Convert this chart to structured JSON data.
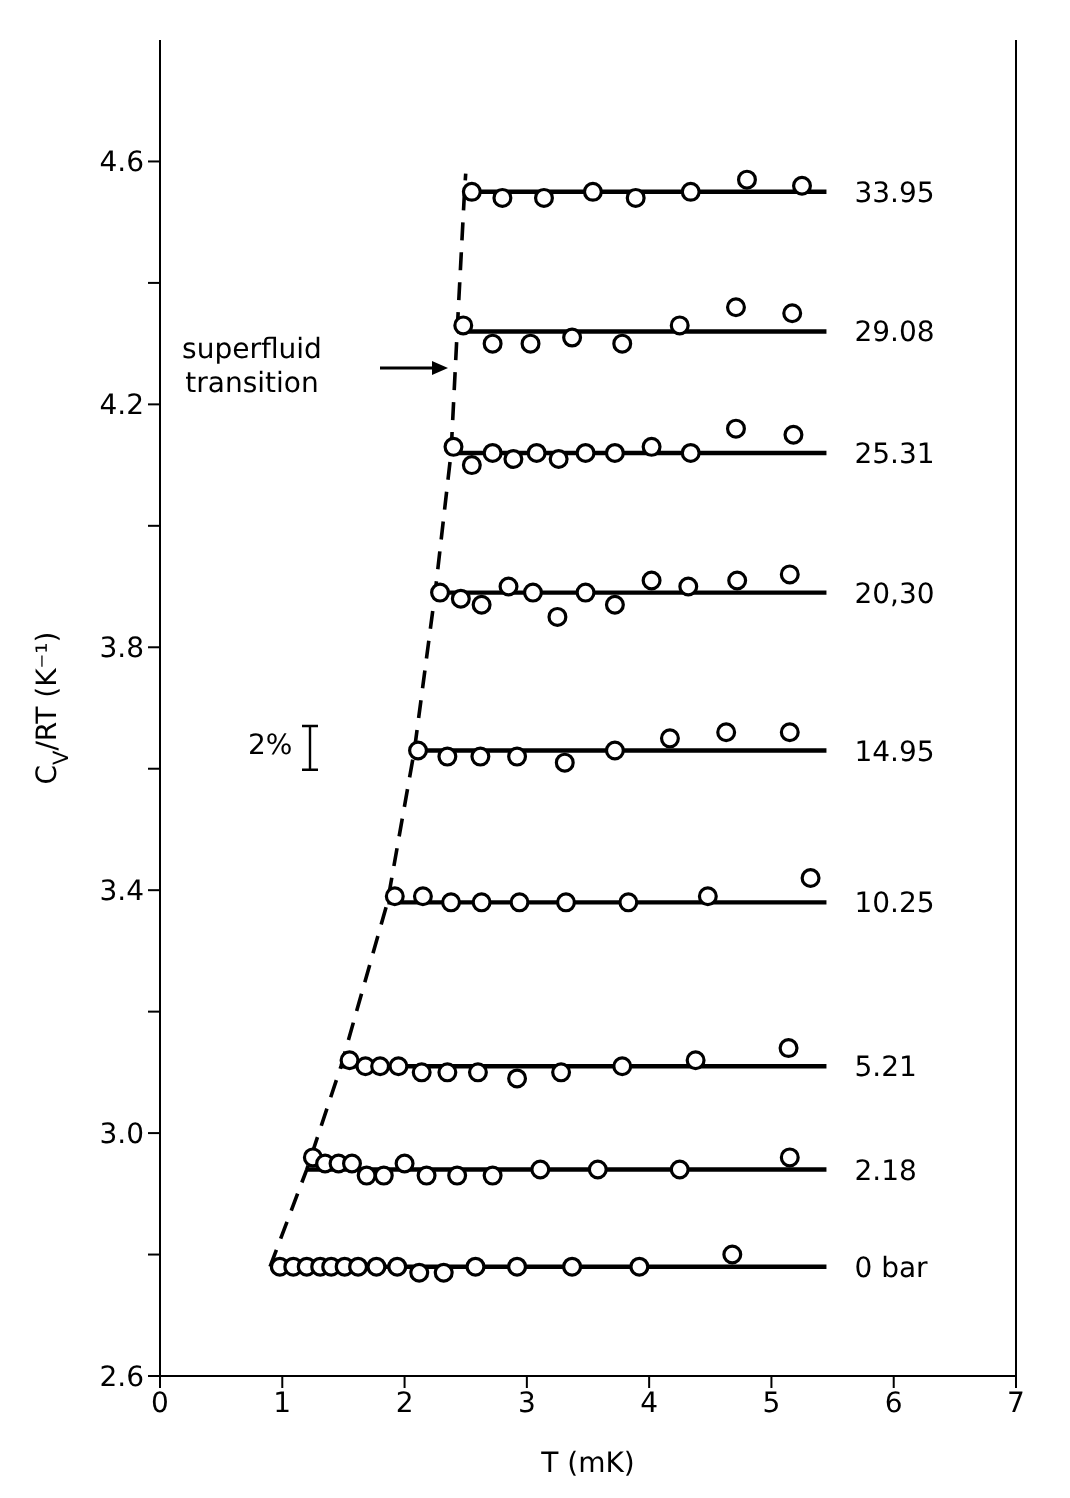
{
  "chart_data": {
    "type": "scatter",
    "xlabel": "T (mK)",
    "ylabel": "C$_{V}$/RT (K⁻¹)",
    "xlim": [
      0,
      7
    ],
    "ylim": [
      2.6,
      4.8
    ],
    "xticks": [
      0,
      1,
      2,
      3,
      4,
      5,
      6,
      7
    ],
    "yticks": [
      2.6,
      {
        "value": 2.8,
        "label": null
      },
      {
        "value": 3.0,
        "label": "3.0"
      },
      {
        "value": 3.2,
        "label": null
      },
      3.4,
      {
        "value": 3.6,
        "label": null
      },
      3.8,
      {
        "value": 4.0,
        "label": null
      },
      4.2,
      {
        "value": 4.4,
        "label": null
      },
      4.6
    ],
    "marker": "circle",
    "series": [
      {
        "type": "line",
        "marker": "none",
        "line_style": "dashed",
        "color": "#000000",
        "x": [
          0.9,
          1.2,
          1.48,
          1.86,
          2.08,
          2.25,
          2.38,
          2.43,
          2.49,
          2.5
        ],
        "values": [
          2.78,
          2.94,
          3.11,
          3.38,
          3.63,
          3.89,
          4.12,
          4.32,
          4.55,
          4.58
        ]
      },
      {
        "type": "line",
        "marker": "none",
        "name": "33.95",
        "color": "#000000",
        "x": [
          2.49,
          5.45
        ],
        "values": [
          4.55,
          4.55
        ]
      },
      {
        "color": "#000000",
        "x": [
          2.55,
          2.8,
          3.14,
          3.54,
          3.89,
          4.34,
          4.8,
          5.25
        ],
        "values": [
          4.55,
          4.54,
          4.54,
          4.55,
          4.54,
          4.55,
          4.57,
          4.56
        ]
      },
      {
        "type": "line",
        "marker": "none",
        "name": "29.08",
        "color": "#000000",
        "x": [
          2.43,
          5.45
        ],
        "values": [
          4.32,
          4.32
        ]
      },
      {
        "color": "#000000",
        "x": [
          2.48,
          2.72,
          3.03,
          3.37,
          3.78,
          4.25,
          4.71,
          5.17
        ],
        "values": [
          4.33,
          4.3,
          4.3,
          4.31,
          4.3,
          4.33,
          4.36,
          4.35
        ]
      },
      {
        "type": "line",
        "marker": "none",
        "name": "25.31",
        "color": "#000000",
        "x": [
          2.38,
          5.45
        ],
        "values": [
          4.12,
          4.12
        ]
      },
      {
        "color": "#000000",
        "x": [
          2.4,
          2.55,
          2.72,
          2.89,
          3.08,
          3.26,
          3.48,
          3.72,
          4.02,
          4.34,
          4.71,
          5.18
        ],
        "values": [
          4.13,
          4.1,
          4.12,
          4.11,
          4.12,
          4.11,
          4.12,
          4.12,
          4.13,
          4.12,
          4.16,
          4.15
        ]
      },
      {
        "type": "line",
        "marker": "none",
        "name": "20,30",
        "color": "#000000",
        "x": [
          2.25,
          5.45
        ],
        "values": [
          3.89,
          3.89
        ]
      },
      {
        "color": "#000000",
        "x": [
          2.29,
          2.46,
          2.63,
          2.85,
          3.05,
          3.25,
          3.48,
          3.72,
          4.02,
          4.32,
          4.72,
          5.15
        ],
        "values": [
          3.89,
          3.88,
          3.87,
          3.9,
          3.89,
          3.85,
          3.89,
          3.87,
          3.91,
          3.9,
          3.91,
          3.92
        ]
      },
      {
        "type": "line",
        "marker": "none",
        "name": "14.95",
        "color": "#000000",
        "x": [
          2.08,
          5.45
        ],
        "values": [
          3.63,
          3.63
        ]
      },
      {
        "color": "#000000",
        "x": [
          2.11,
          2.35,
          2.62,
          2.92,
          3.31,
          3.72,
          4.17,
          4.63,
          5.15
        ],
        "values": [
          3.63,
          3.62,
          3.62,
          3.62,
          3.61,
          3.63,
          3.65,
          3.66,
          3.66
        ]
      },
      {
        "type": "line",
        "marker": "none",
        "name": "10.25",
        "color": "#000000",
        "x": [
          1.86,
          5.45
        ],
        "values": [
          3.38,
          3.38
        ]
      },
      {
        "color": "#000000",
        "x": [
          1.92,
          2.15,
          2.38,
          2.63,
          2.94,
          3.32,
          3.83,
          4.48,
          5.32
        ],
        "values": [
          3.39,
          3.39,
          3.38,
          3.38,
          3.38,
          3.38,
          3.38,
          3.39,
          3.42
        ]
      },
      {
        "type": "line",
        "marker": "none",
        "name": "5.21",
        "color": "#000000",
        "x": [
          1.48,
          5.45
        ],
        "values": [
          3.11,
          3.11
        ]
      },
      {
        "color": "#000000",
        "x": [
          1.55,
          1.68,
          1.8,
          1.95,
          2.14,
          2.35,
          2.6,
          2.92,
          3.28,
          3.78,
          4.38,
          5.14
        ],
        "values": [
          3.12,
          3.11,
          3.11,
          3.11,
          3.1,
          3.1,
          3.1,
          3.09,
          3.1,
          3.11,
          3.12,
          3.14
        ]
      },
      {
        "type": "line",
        "marker": "none",
        "name": "2.18",
        "color": "#000000",
        "x": [
          1.2,
          5.45
        ],
        "values": [
          2.94,
          2.94
        ]
      },
      {
        "color": "#000000",
        "x": [
          1.25,
          1.35,
          1.46,
          1.57,
          1.69,
          1.83,
          2.0,
          2.18,
          2.43,
          2.72,
          3.11,
          3.58,
          4.25,
          5.15
        ],
        "values": [
          2.96,
          2.95,
          2.95,
          2.95,
          2.93,
          2.93,
          2.95,
          2.93,
          2.93,
          2.93,
          2.94,
          2.94,
          2.94,
          2.96
        ]
      },
      {
        "type": "line",
        "marker": "none",
        "name": "0 bar",
        "color": "#000000",
        "x": [
          0.9,
          5.45
        ],
        "values": [
          2.78,
          2.78
        ]
      },
      {
        "color": "#000000",
        "x": [
          0.98,
          1.09,
          1.2,
          1.31,
          1.4,
          1.51,
          1.62,
          1.77,
          1.94,
          2.12,
          2.32,
          2.58,
          2.92,
          3.37,
          3.92,
          4.68
        ],
        "values": [
          2.78,
          2.78,
          2.78,
          2.78,
          2.78,
          2.78,
          2.78,
          2.78,
          2.78,
          2.77,
          2.77,
          2.78,
          2.78,
          2.78,
          2.78,
          2.8
        ]
      }
    ],
    "annotations": [
      "superfluid\ntransition",
      "2%"
    ]
  }
}
